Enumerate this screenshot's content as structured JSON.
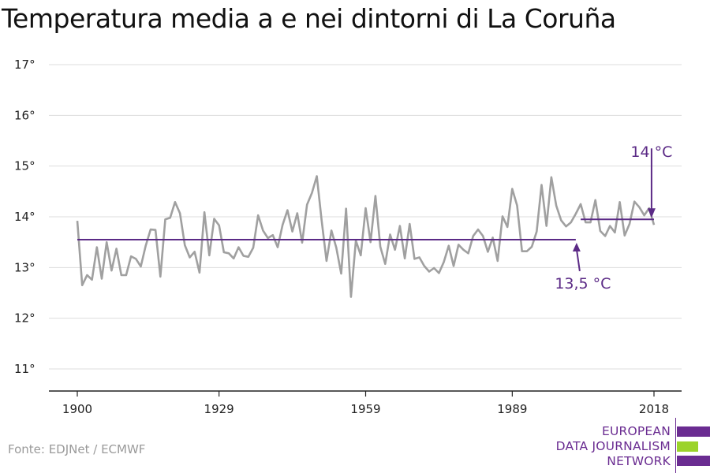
{
  "title": "Temperatura media a e nei dintorni di La Coruña",
  "source": "Fonte: EDJNet / ECMWF",
  "logo": {
    "lines": [
      "EUROPEAN",
      "DATA JOURNALISM",
      "NETWORK"
    ],
    "colors": [
      "#6a2c91",
      "#9bd32a",
      "#6a2c91"
    ]
  },
  "colors": {
    "series": "#a0a0a0",
    "average": "#5b2a86",
    "grid": "#dddddd",
    "axis": "#222222"
  },
  "chart_data": {
    "type": "line",
    "title": "Temperatura media a e nei dintorni di La Coruña",
    "xlim": [
      1900,
      2018
    ],
    "ylim": [
      10.5,
      17.2
    ],
    "x_ticks": [
      1900,
      1929,
      1959,
      1989,
      2018
    ],
    "x_tick_labels": [
      "1900",
      "1929",
      "1959",
      "1989",
      "2018"
    ],
    "y_ticks": [
      11,
      12,
      13,
      14,
      15,
      16,
      17
    ],
    "y_tick_labels": [
      "11°",
      "12°",
      "13°",
      "14°",
      "15°",
      "16°",
      "17°"
    ],
    "grid": "horizontal",
    "series": [
      {
        "x": [
          1900,
          1901,
          1902,
          1903,
          1904,
          1905,
          1906,
          1907,
          1908,
          1909,
          1910,
          1911,
          1912,
          1913,
          1914,
          1915,
          1916,
          1917,
          1918,
          1919,
          1920,
          1921,
          1922,
          1923,
          1924,
          1925,
          1926,
          1927,
          1928,
          1929,
          1930,
          1931,
          1932,
          1933,
          1934,
          1935,
          1936,
          1937,
          1938,
          1939,
          1940,
          1941,
          1942,
          1943,
          1944,
          1945,
          1946,
          1947,
          1948,
          1949,
          1950,
          1951,
          1952,
          1953,
          1954,
          1955,
          1956,
          1957,
          1958,
          1959,
          1960,
          1961,
          1962,
          1963,
          1964,
          1965,
          1966,
          1967,
          1968,
          1969,
          1970,
          1971,
          1972,
          1973,
          1974,
          1975,
          1976,
          1977,
          1978,
          1979,
          1980,
          1981,
          1982,
          1983,
          1984,
          1985,
          1986,
          1987,
          1988,
          1989,
          1990,
          1991,
          1992,
          1993,
          1994,
          1995,
          1996,
          1997,
          1998,
          1999,
          2000,
          2001,
          2002,
          2003,
          2004,
          2005,
          2006,
          2007,
          2008,
          2009,
          2010,
          2011,
          2012,
          2013,
          2014,
          2015,
          2016,
          2017,
          2018
        ],
        "values": [
          13.92,
          12.65,
          12.85,
          12.76,
          13.4,
          12.78,
          13.5,
          12.94,
          13.37,
          12.85,
          12.85,
          13.22,
          13.17,
          13.02,
          13.43,
          13.75,
          13.74,
          12.82,
          13.95,
          13.98,
          14.29,
          14.07,
          13.44,
          13.2,
          13.31,
          12.9,
          14.09,
          13.24,
          13.96,
          13.83,
          13.3,
          13.28,
          13.18,
          13.4,
          13.23,
          13.21,
          13.39,
          14.03,
          13.73,
          13.58,
          13.64,
          13.4,
          13.84,
          14.13,
          13.71,
          14.07,
          13.49,
          14.24,
          14.47,
          14.8,
          13.93,
          13.13,
          13.73,
          13.39,
          12.88,
          14.16,
          12.42,
          13.53,
          13.24,
          14.17,
          13.5,
          14.41,
          13.41,
          13.07,
          13.65,
          13.35,
          13.82,
          13.18,
          13.86,
          13.17,
          13.2,
          13.03,
          12.92,
          12.99,
          12.89,
          13.11,
          13.43,
          13.03,
          13.45,
          13.35,
          13.28,
          13.62,
          13.75,
          13.62,
          13.31,
          13.59,
          13.13,
          14.01,
          13.8,
          14.55,
          14.22,
          13.32,
          13.32,
          13.41,
          13.71,
          14.63,
          13.82,
          14.78,
          14.22,
          13.93,
          13.81,
          13.89,
          14.06,
          14.25,
          13.89,
          13.89,
          14.33,
          13.72,
          13.62,
          13.82,
          13.69,
          14.29,
          13.63,
          13.86,
          14.3,
          14.19,
          14.03,
          14.17,
          13.84
        ]
      }
    ],
    "averages": [
      {
        "label": "13,5 °C",
        "value": 13.55,
        "from": 1900,
        "to": 2002
      },
      {
        "label": "14 °C",
        "value": 13.95,
        "from": 2003,
        "to": 2018
      }
    ]
  }
}
